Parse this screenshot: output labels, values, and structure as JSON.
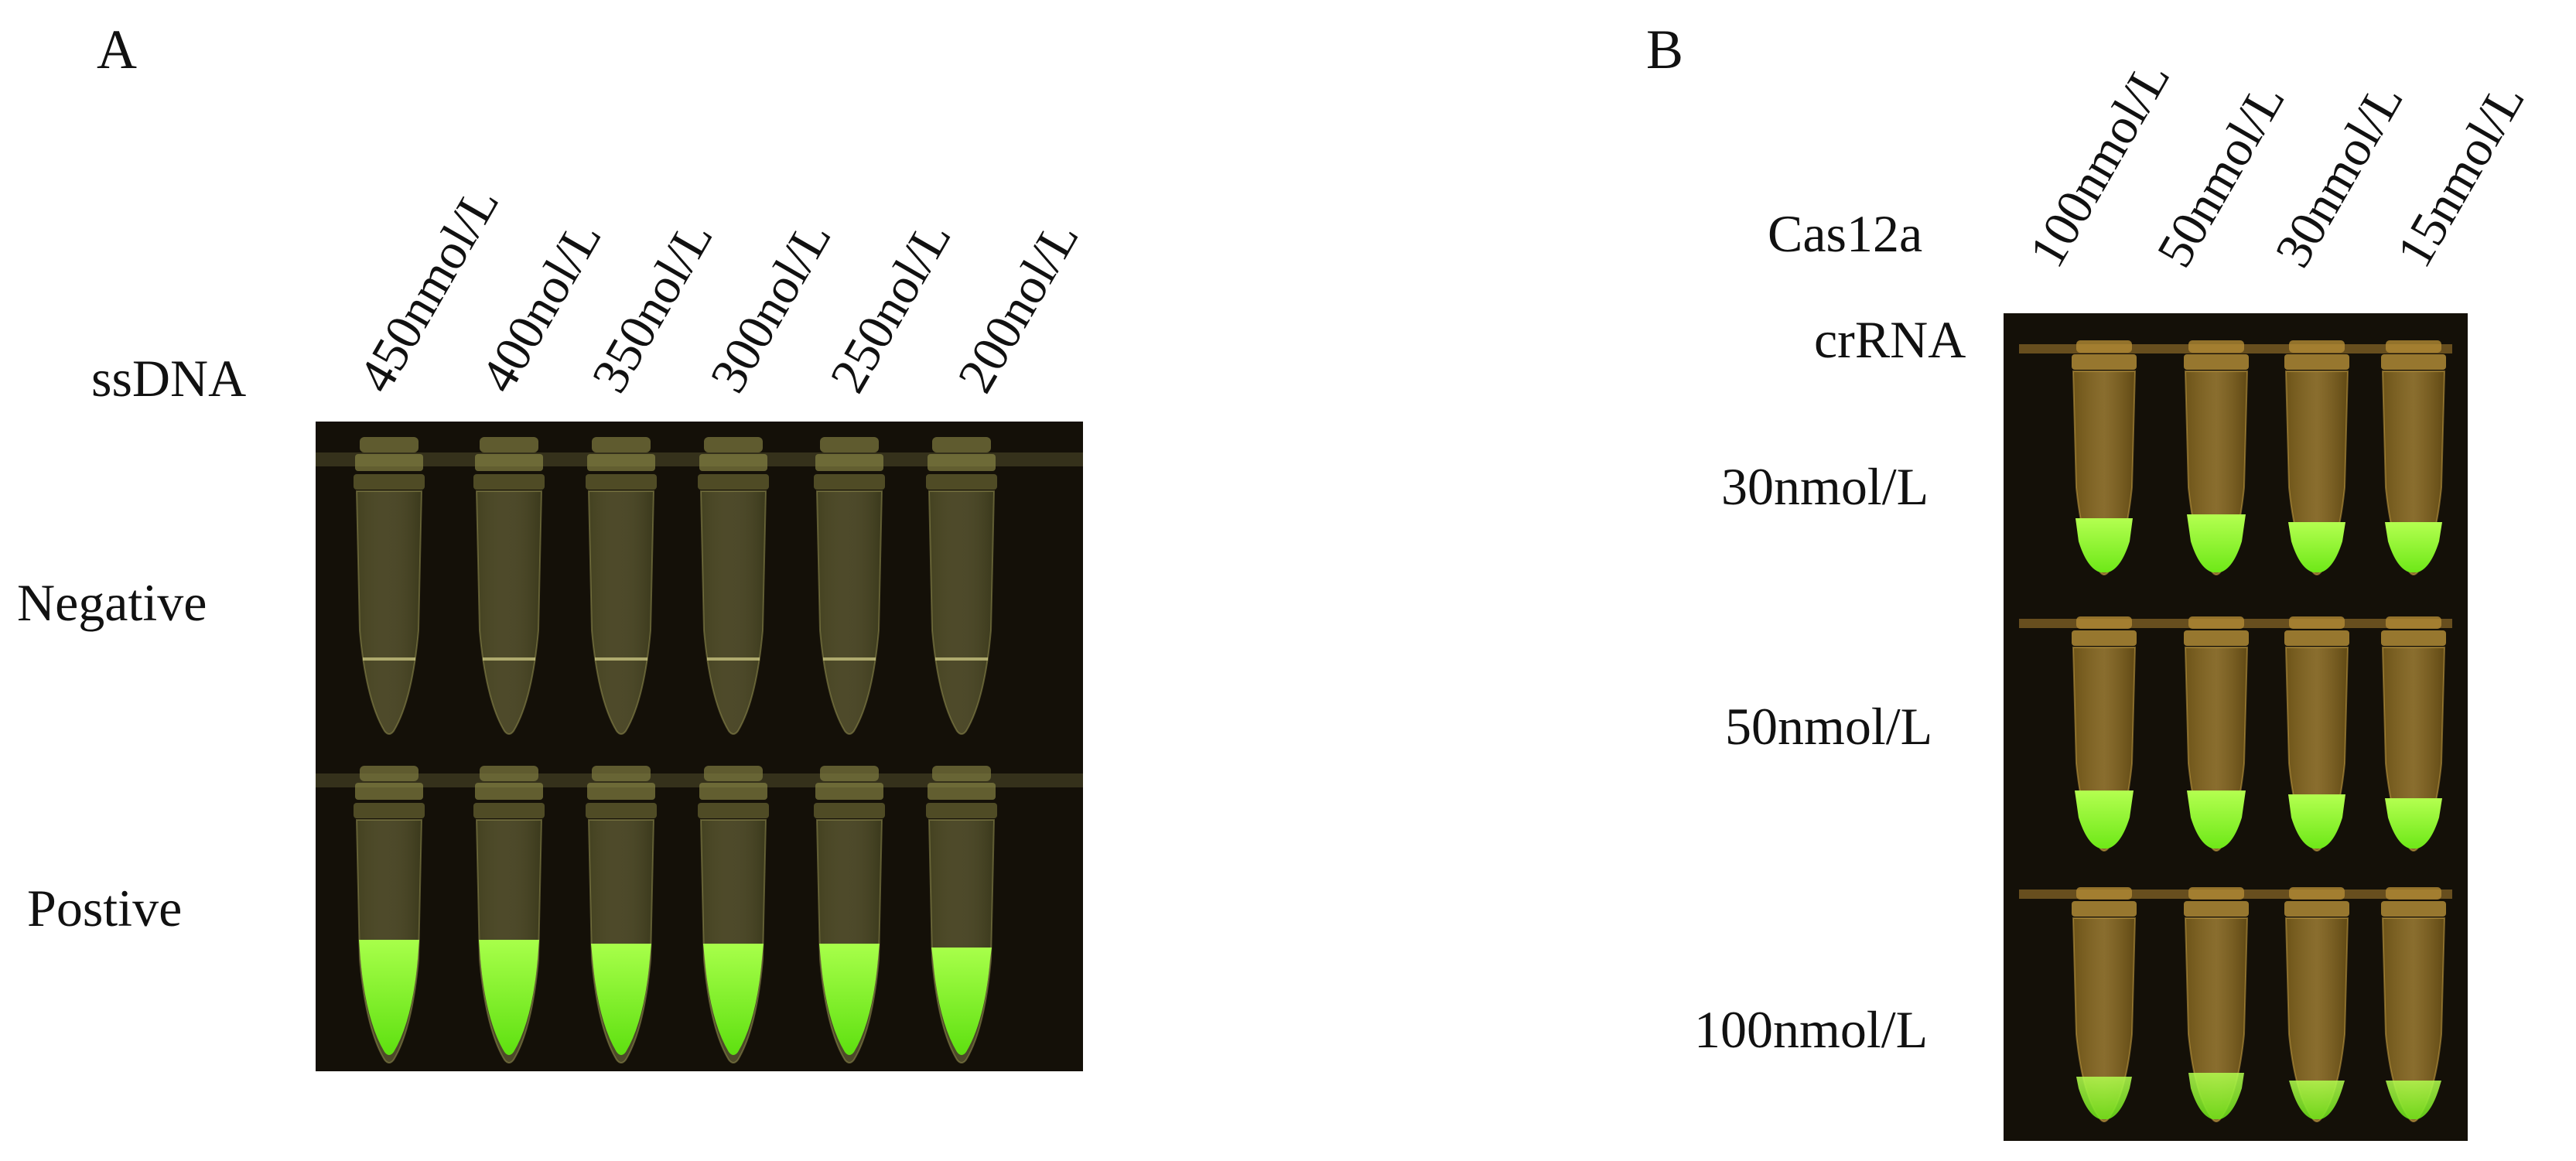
{
  "panel_a": {
    "letter": "A",
    "row_header": "ssDNA",
    "columns": [
      "450nmol/L",
      "400nol/L",
      "350nol/L",
      "300nol/L",
      "250nol/L",
      "200nol/L"
    ],
    "rows": [
      "Negative",
      "Postive"
    ]
  },
  "panel_b": {
    "letter": "B",
    "col_header": "Cas12a",
    "row_header": "crRNA",
    "columns": [
      "100nmol/L",
      "50nmol/L",
      "30nmol/L",
      "15nmol/L"
    ],
    "rows": [
      "30nmol/L",
      "50nmol/L",
      "100nmol/L"
    ]
  },
  "colors": {
    "photo_background": "#141008",
    "negative_tube": "#b8b46a",
    "positive_fluorescence": "#7dfc1a",
    "panel_b_tube": "#c9a13a"
  }
}
